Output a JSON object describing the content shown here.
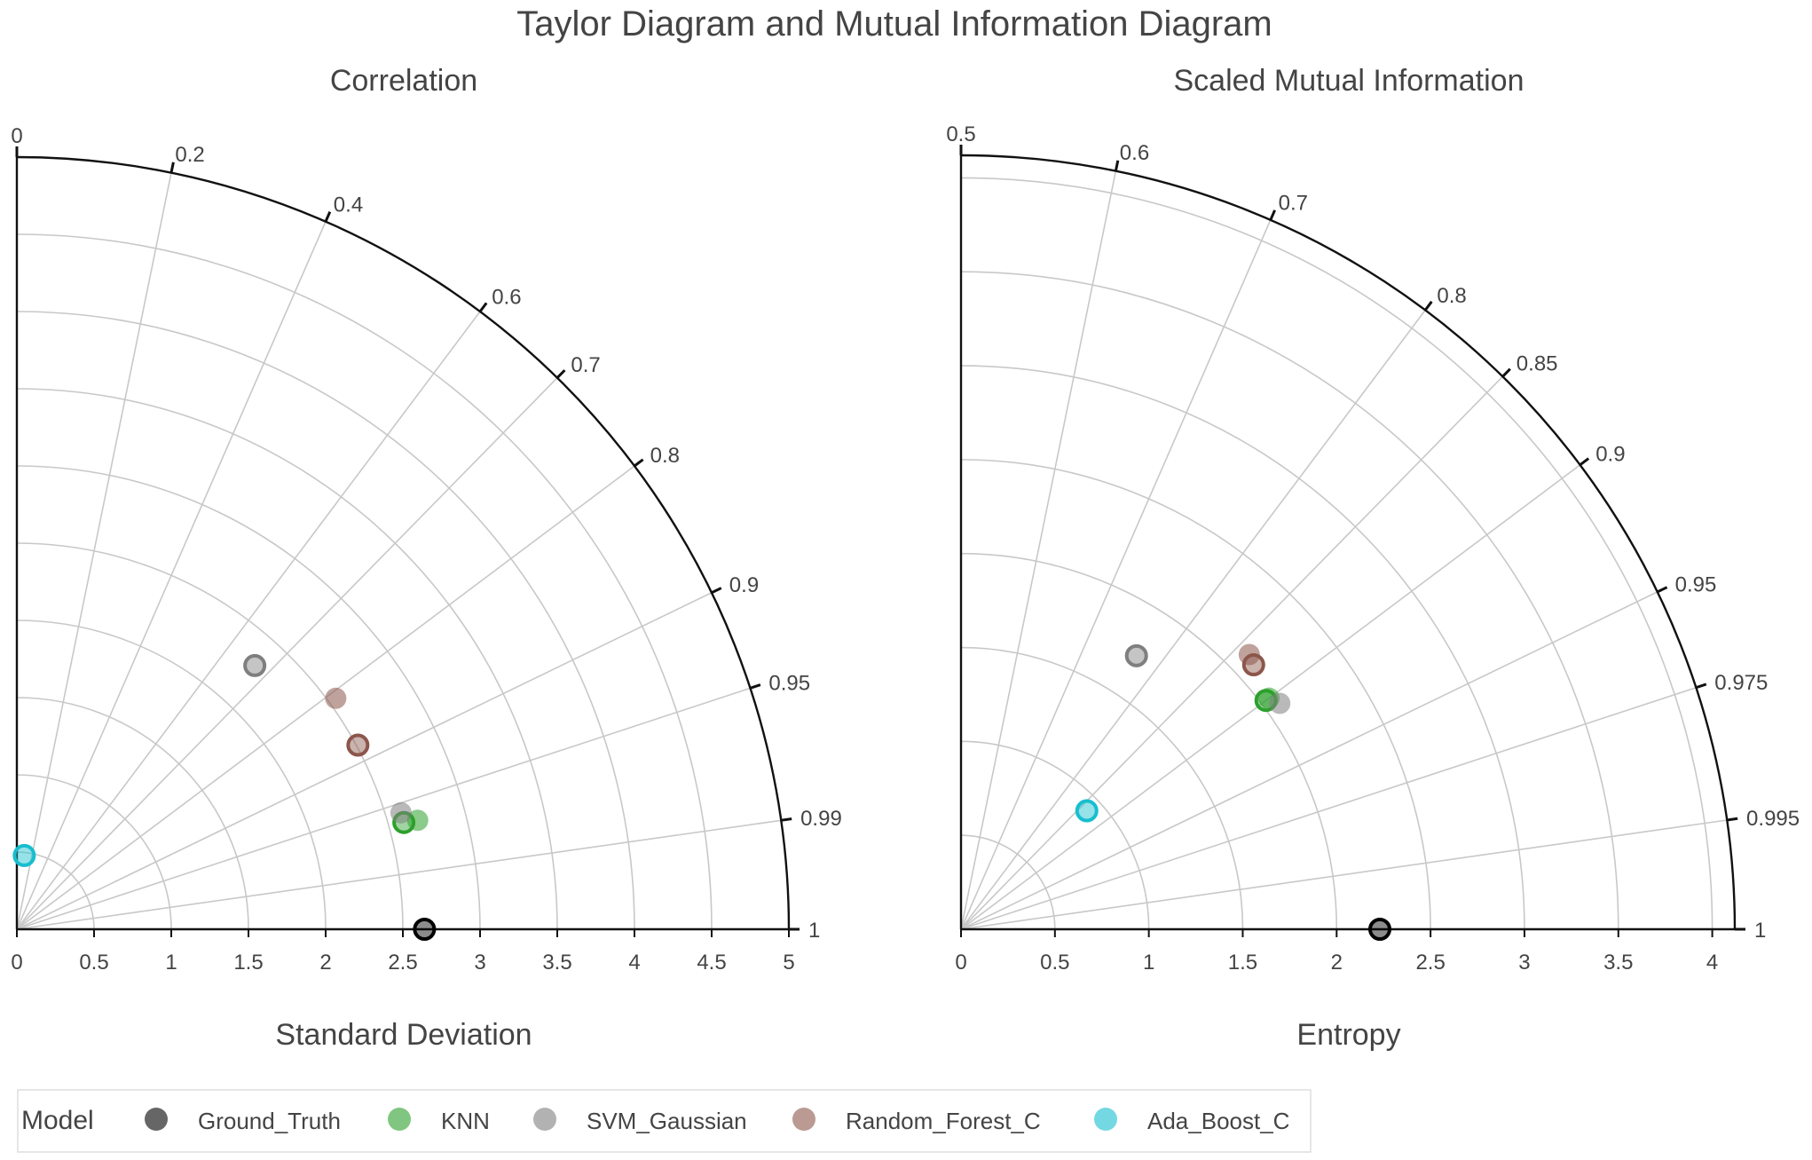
{
  "page_title": "Taylor Diagram and Mutual Information Diagram",
  "legend": {
    "title": "Model",
    "items": [
      {
        "label": "Ground_Truth",
        "color": "#000000"
      },
      {
        "label": "KNN",
        "color": "#2ca02c"
      },
      {
        "label": "SVM_Gaussian",
        "color": "#7f7f7f"
      },
      {
        "label": "Random_Forest_C",
        "color": "#8c564b"
      },
      {
        "label": "Ada_Boost_C",
        "color": "#17becf"
      }
    ]
  },
  "chart_data": [
    {
      "type": "scatter",
      "subtype": "taylor-diagram",
      "title": "Correlation",
      "xlabel": "Standard Deviation",
      "radial_range": [
        0,
        5
      ],
      "radial_ticks": [
        0,
        0.5,
        1,
        1.5,
        2,
        2.5,
        3,
        3.5,
        4,
        4.5,
        5
      ],
      "radial_tick_labels": [
        "0",
        "0.5",
        "1",
        "1.5",
        "2",
        "2.5",
        "3",
        "3.5",
        "4",
        "4.5",
        "5"
      ],
      "angular_mapping": "arccos",
      "angular_ticks": [
        0,
        0.2,
        0.4,
        0.6,
        0.7,
        0.8,
        0.9,
        0.95,
        0.99,
        1
      ],
      "angular_tick_labels": [
        "0",
        "0.2",
        "0.4",
        "0.6",
        "0.7",
        "0.8",
        "0.9",
        "0.95",
        "0.99",
        "1"
      ],
      "grid": true,
      "points": [
        {
          "series": "Ground_Truth",
          "r": 2.64,
          "angle_value": 1.0,
          "style": "outline"
        },
        {
          "series": "KNN",
          "r": 2.69,
          "angle_value": 0.965,
          "style": "filled"
        },
        {
          "series": "KNN",
          "r": 2.6,
          "angle_value": 0.964,
          "style": "outline"
        },
        {
          "series": "SVM_Gaussian",
          "r": 2.6,
          "angle_value": 0.957,
          "style": "filled"
        },
        {
          "series": "SVM_Gaussian",
          "r": 2.3,
          "angle_value": 0.67,
          "style": "outline"
        },
        {
          "series": "Random_Forest_C",
          "r": 2.55,
          "angle_value": 0.81,
          "style": "filled"
        },
        {
          "series": "Random_Forest_C",
          "r": 2.51,
          "angle_value": 0.88,
          "style": "outline"
        },
        {
          "series": "Ada_Boost_C",
          "r": 0.48,
          "angle_value": 0.1,
          "style": "outline"
        }
      ]
    },
    {
      "type": "scatter",
      "subtype": "mutual-information-diagram",
      "title": "Scaled Mutual Information",
      "xlabel": "Entropy",
      "radial_range": [
        0,
        4.12
      ],
      "radial_ticks": [
        0,
        0.5,
        1,
        1.5,
        2,
        2.5,
        3,
        3.5,
        4
      ],
      "radial_tick_labels": [
        "0",
        "0.5",
        "1",
        "1.5",
        "2",
        "2.5",
        "3",
        "3.5",
        "4"
      ],
      "angular_mapping": "arccos(2v-1)",
      "angular_ticks": [
        0.5,
        0.6,
        0.7,
        0.8,
        0.85,
        0.9,
        0.95,
        0.975,
        0.995,
        1
      ],
      "angular_tick_labels": [
        "0.5",
        "0.6",
        "0.7",
        "0.8",
        "0.85",
        "0.9",
        "0.95",
        "0.975",
        "0.995",
        "1"
      ],
      "grid": true,
      "points": [
        {
          "series": "Ground_Truth",
          "r": 2.23,
          "angle_value": 1.0,
          "style": "outline"
        },
        {
          "series": "KNN",
          "r": 2.05,
          "angle_value": 0.9,
          "style": "filled"
        },
        {
          "series": "KNN",
          "r": 2.03,
          "angle_value": 0.9,
          "style": "outline"
        },
        {
          "series": "SVM_Gaussian",
          "r": 2.08,
          "angle_value": 0.908,
          "style": "filled"
        },
        {
          "series": "SVM_Gaussian",
          "r": 1.73,
          "angle_value": 0.77,
          "style": "outline"
        },
        {
          "series": "Random_Forest_C",
          "r": 2.12,
          "angle_value": 0.862,
          "style": "filled"
        },
        {
          "series": "Random_Forest_C",
          "r": 2.1,
          "angle_value": 0.871,
          "style": "outline"
        },
        {
          "series": "Ada_Boost_C",
          "r": 0.92,
          "angle_value": 0.864,
          "style": "outline"
        }
      ]
    }
  ]
}
